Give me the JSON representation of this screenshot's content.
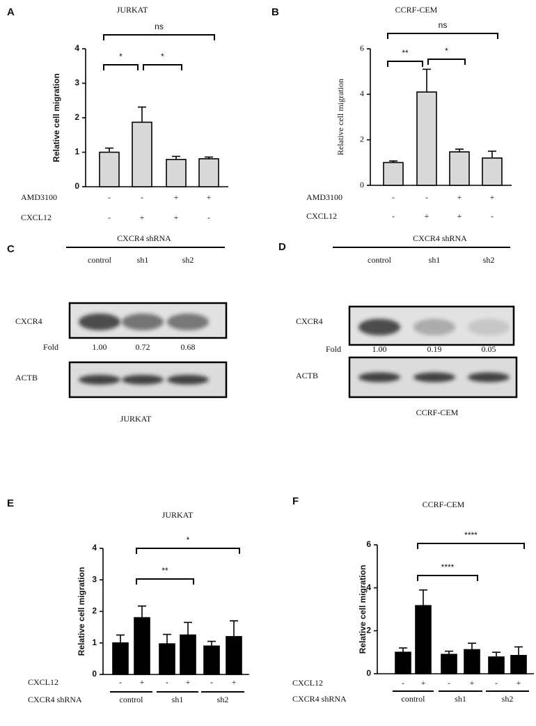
{
  "chart_data": [
    {
      "type": "bar",
      "panel": "A",
      "title": "JURKAT",
      "y_label": "Relative cell migration",
      "values": [
        1.0,
        1.87,
        0.79,
        0.81
      ],
      "errors": [
        0.12,
        0.44,
        0.09,
        0.05
      ],
      "color": "#d9d9d9",
      "ylim": [
        0,
        4
      ],
      "yticks": [
        0,
        1,
        2,
        3,
        4
      ],
      "conditions": [
        {
          "name": "AMD3100",
          "values": [
            "-",
            "-",
            "+",
            "+"
          ]
        },
        {
          "name": "CXCL12",
          "values": [
            "-",
            "+",
            "+",
            "-"
          ]
        }
      ],
      "significance": [
        {
          "label": "ns",
          "from": 0,
          "to": 3
        },
        {
          "label": "*",
          "from": 0,
          "to": 1
        },
        {
          "label": "*",
          "from": 1,
          "to": 2
        }
      ]
    },
    {
      "type": "bar",
      "panel": "B",
      "title": "CCRF-CEM",
      "y_label": "Relative cell migration",
      "values": [
        1.0,
        4.1,
        1.47,
        1.2
      ],
      "errors": [
        0.07,
        1.0,
        0.12,
        0.3
      ],
      "color": "#d9d9d9",
      "ylim": [
        0,
        6
      ],
      "yticks": [
        0,
        2,
        4,
        6
      ],
      "conditions": [
        {
          "name": "AMD3100",
          "values": [
            "-",
            "-",
            "+",
            "+"
          ]
        },
        {
          "name": "CXCL12",
          "values": [
            "-",
            "+",
            "+",
            "-"
          ]
        }
      ],
      "significance": [
        {
          "label": "ns",
          "from": 0,
          "to": 3
        },
        {
          "label": "**",
          "from": 0,
          "to": 1
        },
        {
          "label": "*",
          "from": 1,
          "to": 2
        }
      ]
    },
    {
      "type": "bar",
      "panel": "E",
      "title": "JURKAT",
      "y_label": "Relative cell migration",
      "values": [
        1.0,
        1.8,
        0.97,
        1.25,
        0.9,
        1.2
      ],
      "errors": [
        0.25,
        0.37,
        0.3,
        0.4,
        0.15,
        0.5
      ],
      "color": "#000000",
      "ylim": [
        0,
        4
      ],
      "yticks": [
        0,
        1,
        2,
        3,
        4
      ],
      "conditions": [
        {
          "name": "CXCL12",
          "values": [
            "-",
            "+",
            "-",
            "+",
            "-",
            "+"
          ]
        }
      ],
      "group_name": "CXCR4 shRNA",
      "groups": [
        "control",
        "sh1",
        "sh2"
      ],
      "significance": [
        {
          "label": "*",
          "from": 1,
          "to": 5
        },
        {
          "label": "**",
          "from": 1,
          "to": 3
        }
      ]
    },
    {
      "type": "bar",
      "panel": "F",
      "title": "CCRF-CEM",
      "y_label": "Relative cell migration",
      "values": [
        1.0,
        3.17,
        0.9,
        1.12,
        0.78,
        0.85
      ],
      "errors": [
        0.2,
        0.73,
        0.15,
        0.3,
        0.22,
        0.4
      ],
      "color": "#000000",
      "ylim": [
        0,
        6
      ],
      "yticks": [
        0,
        2,
        4,
        6
      ],
      "conditions": [
        {
          "name": "CXCL12",
          "values": [
            "-",
            "+",
            "-",
            "+",
            "-",
            "+"
          ]
        }
      ],
      "group_name": "CXCR4 shRNA",
      "groups": [
        "control",
        "sh1",
        "sh2"
      ],
      "significance": [
        {
          "label": "****",
          "from": 1,
          "to": 5
        },
        {
          "label": "****",
          "from": 1,
          "to": 3
        }
      ]
    }
  ],
  "blots": [
    {
      "panel": "C",
      "header": "CXCR4 shRNA",
      "lanes": [
        "control",
        "sh1",
        "sh2"
      ],
      "target": "CXCR4",
      "fold_label": "Fold",
      "fold": [
        "1.00",
        "0.72",
        "0.68"
      ],
      "loading": "ACTB",
      "caption": "JURKAT"
    },
    {
      "panel": "D",
      "header": "CXCR4 shRNA",
      "lanes": [
        "control",
        "sh1",
        "sh2"
      ],
      "target": "CXCR4",
      "fold_label": "Fold",
      "fold": [
        "1.00",
        "0.19",
        "0.05"
      ],
      "loading": "ACTB",
      "caption": "CCRF-CEM"
    }
  ]
}
